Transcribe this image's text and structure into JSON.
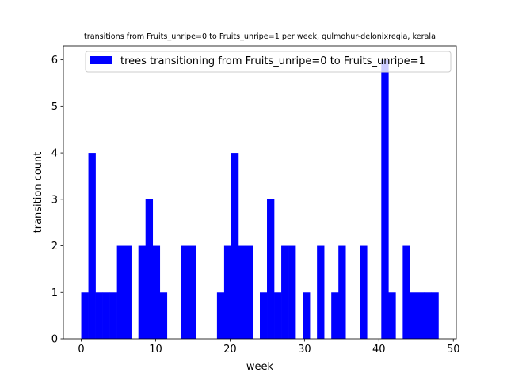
{
  "chart_data": {
    "type": "bar",
    "title": "transitions from Fruits_unripe=0 to Fruits_unripe=1 per week, gulmohur-delonixregia, kerala",
    "xlabel": "week",
    "ylabel": "transition count",
    "xlim": [
      -2.4,
      50.4
    ],
    "ylim": [
      0,
      6.3
    ],
    "xticks": [
      0,
      10,
      20,
      30,
      40,
      50
    ],
    "yticks": [
      0,
      1,
      2,
      3,
      4,
      5,
      6
    ],
    "bin_width": 0.96,
    "bar_color": "#0000ff",
    "legend_position": "top-right",
    "series": [
      {
        "name": "trees transitioning from Fruits_unripe=0 to Fruits_unripe=1",
        "x": [
          0,
          0.96,
          1.92,
          2.88,
          3.84,
          4.8,
          5.76,
          7.68,
          8.64,
          9.6,
          10.56,
          13.44,
          14.4,
          18.24,
          19.2,
          20.16,
          21.12,
          22.08,
          24,
          24.96,
          25.92,
          26.88,
          27.84,
          29.76,
          31.68,
          33.6,
          34.56,
          37.44,
          40.32,
          41.28,
          43.2,
          44.16,
          45.12,
          46.08,
          47.04
        ],
        "values": [
          1,
          4,
          1,
          1,
          1,
          2,
          2,
          2,
          3,
          2,
          1,
          2,
          2,
          1,
          2,
          4,
          2,
          2,
          1,
          3,
          1,
          2,
          2,
          1,
          2,
          1,
          2,
          2,
          6,
          1,
          2,
          1,
          1,
          1,
          1
        ]
      }
    ]
  }
}
